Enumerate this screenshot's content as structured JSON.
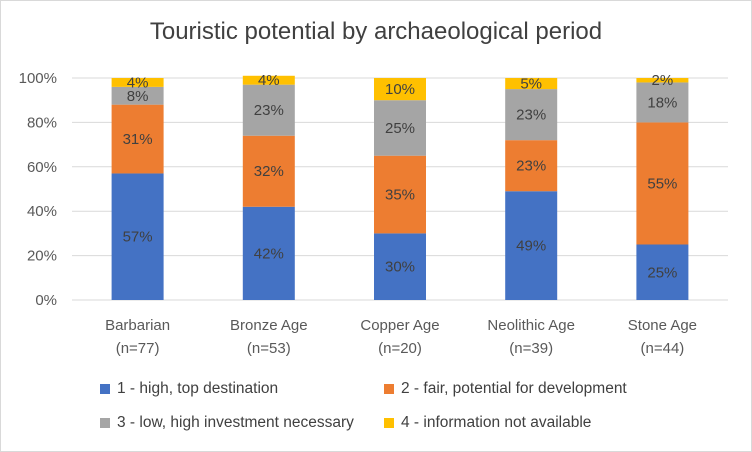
{
  "chart_data": {
    "type": "bar",
    "stacked": true,
    "percent": true,
    "title": "Touristic potential by archaeological period",
    "categories": [
      "Barbarian",
      "Bronze Age",
      "Copper Age",
      "Neolithic Age",
      "Stone Age"
    ],
    "category_counts": [
      "(n=77)",
      "(n=53)",
      "(n=20)",
      "(n=39)",
      "(n=44)"
    ],
    "series": [
      {
        "name": "1 - high, top destination",
        "color": "#4472C4",
        "values": [
          57,
          42,
          30,
          49,
          25
        ],
        "labels": [
          "57%",
          "42%",
          "30%",
          "49%",
          "25%"
        ]
      },
      {
        "name": "2 - fair, potential for development",
        "color": "#ED7D31",
        "values": [
          31,
          32,
          35,
          23,
          55
        ],
        "labels": [
          "31%",
          "32%",
          "35%",
          "23%",
          "55%"
        ]
      },
      {
        "name": "3 - low, high investment necessary",
        "color": "#A5A5A5",
        "values": [
          8,
          23,
          25,
          23,
          18
        ],
        "labels": [
          "8%",
          "23%",
          "25%",
          "23%",
          "18%"
        ]
      },
      {
        "name": "4 - information not available",
        "color": "#FFC000",
        "values": [
          4,
          4,
          10,
          5,
          2
        ],
        "labels": [
          "4%",
          "4%",
          "10%",
          "5%",
          "2%"
        ]
      }
    ],
    "y_ticks": [
      "0%",
      "20%",
      "40%",
      "60%",
      "80%",
      "100%"
    ],
    "ylim": [
      0,
      100
    ],
    "grid": true,
    "legend_position": "bottom"
  }
}
